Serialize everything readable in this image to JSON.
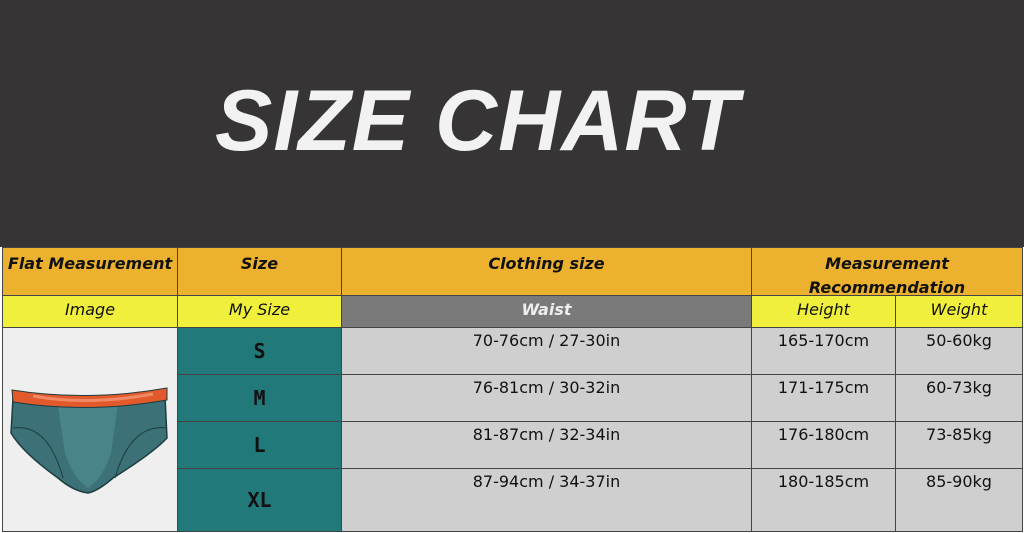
{
  "title": "SIZE CHART",
  "headers": {
    "flat": "Flat Measurement",
    "size": "Size",
    "clothing": "Clothing size",
    "rec": "Measurement Recommendation"
  },
  "subheaders": {
    "image": "Image",
    "my_size": "My Size",
    "waist": "Waist",
    "height": "Height",
    "weight": "Weight"
  },
  "rows": [
    {
      "size": "S",
      "waist": "70-76cm / 27-30in",
      "height": "165-170cm",
      "weight": "50-60kg"
    },
    {
      "size": "M",
      "waist": "76-81cm / 30-32in",
      "height": "171-175cm",
      "weight": "60-73kg"
    },
    {
      "size": "L",
      "waist": "81-87cm / 32-34in",
      "height": "176-180cm",
      "weight": "73-85kg"
    },
    {
      "size": "XL",
      "waist": "87-94cm / 34-37in",
      "height": "180-185cm",
      "weight": "85-90kg"
    }
  ],
  "image": {
    "icon": "briefs-underwear-icon"
  },
  "colors": {
    "banner": "#363435",
    "header": "#ebb12f",
    "subheader": "#f0f03c",
    "size_cell": "#21797a",
    "data_cell": "#cfcfcf"
  }
}
